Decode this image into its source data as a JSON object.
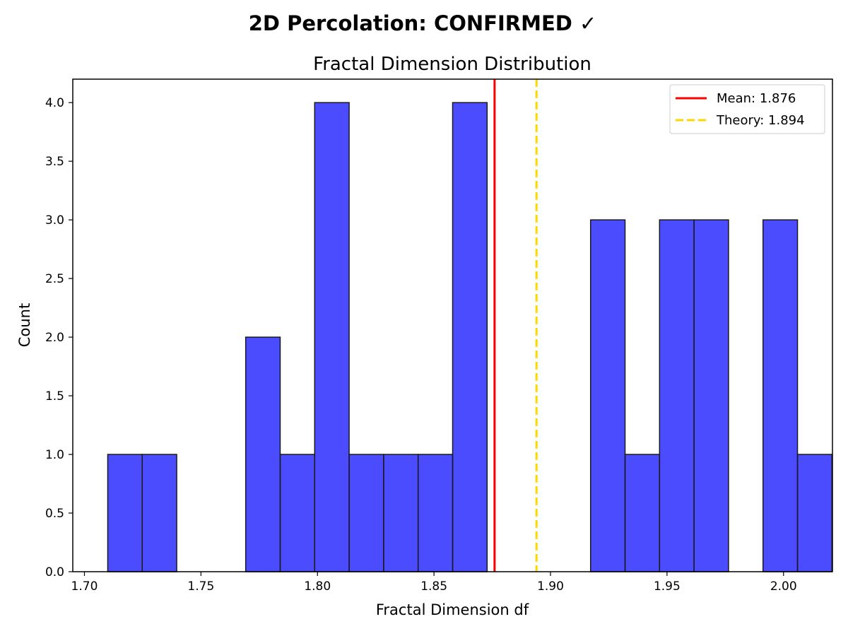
{
  "suptitle": "2D Percolation: CONFIRMED ✓",
  "chart_data": {
    "type": "bar",
    "title": "Fractal Dimension Distribution",
    "xlabel": "Fractal Dimension df",
    "ylabel": "Count",
    "xlim": [
      1.695,
      2.021
    ],
    "ylim": [
      0,
      4.2
    ],
    "xticks": [
      "1.70",
      "1.75",
      "1.80",
      "1.85",
      "1.90",
      "1.95",
      "2.00"
    ],
    "xtick_values": [
      1.7,
      1.75,
      1.8,
      1.85,
      1.9,
      1.95,
      2.0
    ],
    "yticks": [
      "0.0",
      "0.5",
      "1.0",
      "1.5",
      "2.0",
      "2.5",
      "3.0",
      "3.5",
      "4.0"
    ],
    "ytick_values": [
      0,
      0.5,
      1.0,
      1.5,
      2.0,
      2.5,
      3.0,
      3.5,
      4.0
    ],
    "bins": {
      "start": 1.71,
      "width": 0.0148,
      "counts": [
        1,
        1,
        0,
        0,
        2,
        1,
        4,
        1,
        1,
        1,
        4,
        0,
        0,
        0,
        3,
        1,
        3,
        3,
        0,
        3,
        1
      ]
    },
    "bar_color": "#0000ff",
    "mean": {
      "value": 1.876,
      "color": "#ff0000",
      "label": "Mean: 1.876"
    },
    "theory": {
      "value": 1.894,
      "color": "#ffd700",
      "label": "Theory: 1.894"
    },
    "grid": false,
    "legend_position": "top-right"
  }
}
